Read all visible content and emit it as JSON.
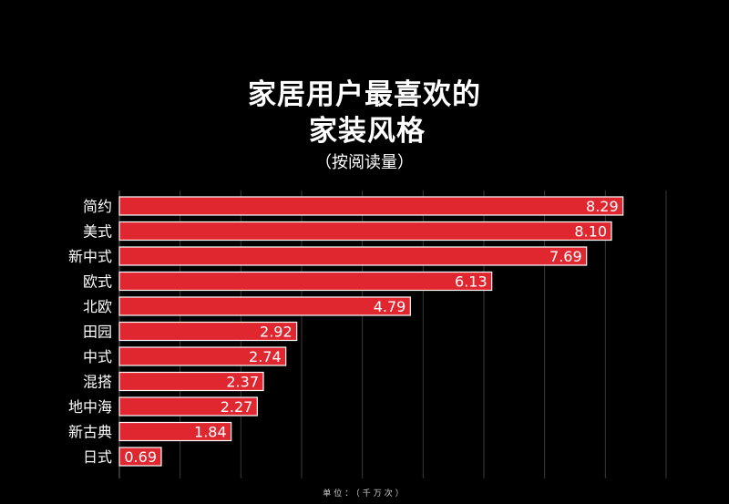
{
  "chart_data": {
    "type": "bar",
    "orientation": "horizontal",
    "title_lines": [
      "家居用户最喜欢的",
      "家装风格"
    ],
    "subtitle": "（按阅读量）",
    "categories": [
      "简约",
      "美式",
      "新中式",
      "欧式",
      "北欧",
      "田园",
      "中式",
      "混搭",
      "地中海",
      "新古典",
      "日式"
    ],
    "values": [
      8.29,
      8.1,
      7.69,
      6.13,
      4.79,
      2.92,
      2.74,
      2.37,
      2.27,
      1.84,
      0.69
    ],
    "value_labels": [
      "8.29",
      "8.10",
      "7.69",
      "6.13",
      "4.79",
      "2.92",
      "2.74",
      "2.37",
      "2.27",
      "1.84",
      "0.69"
    ],
    "xlim": [
      0,
      9
    ],
    "grid": "vertical",
    "unit_note": "单位：（千万次）",
    "colors": {
      "bar": "#e0262f",
      "bar_edge": "#ffffff",
      "background": "#000000",
      "grid": "#3a3a3a"
    }
  }
}
